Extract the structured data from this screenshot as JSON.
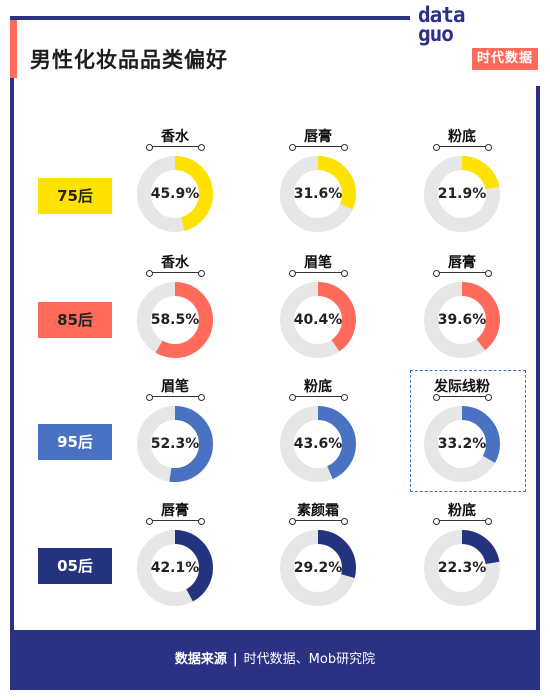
{
  "title": "男性化妆品品类偏好",
  "logo": {
    "word": "data",
    "word2": "guo",
    "badge": "时代数据"
  },
  "footer": {
    "key": "数据来源",
    "sep": "|",
    "value": "时代数据、Mob研究院"
  },
  "colors": {
    "track": "#e6e6e6",
    "frame": "#2b3284",
    "accent": "#ff6b5b"
  },
  "chart_data": {
    "type": "donut-grid",
    "unit": "%",
    "groups": [
      {
        "label": "75后",
        "color": "#ffe200",
        "text_color": "#222222",
        "items": [
          {
            "name": "香水",
            "value": 45.9
          },
          {
            "name": "唇膏",
            "value": 31.6
          },
          {
            "name": "粉底",
            "value": 21.9
          }
        ]
      },
      {
        "label": "85后",
        "color": "#ff6b5b",
        "text_color": "#222222",
        "items": [
          {
            "name": "香水",
            "value": 58.5
          },
          {
            "name": "眉笔",
            "value": 40.4
          },
          {
            "name": "唇膏",
            "value": 39.6
          }
        ]
      },
      {
        "label": "95后",
        "color": "#4a72c2",
        "text_color": "#ffffff",
        "items": [
          {
            "name": "眉笔",
            "value": 52.3
          },
          {
            "name": "粉底",
            "value": 43.6
          },
          {
            "name": "发际线粉",
            "value": 33.2
          }
        ]
      },
      {
        "label": "05后",
        "color": "#24337e",
        "text_color": "#ffffff",
        "items": [
          {
            "name": "唇膏",
            "value": 42.1
          },
          {
            "name": "素颜霜",
            "value": 29.2
          },
          {
            "name": "粉底",
            "value": 22.3
          }
        ]
      }
    ]
  }
}
